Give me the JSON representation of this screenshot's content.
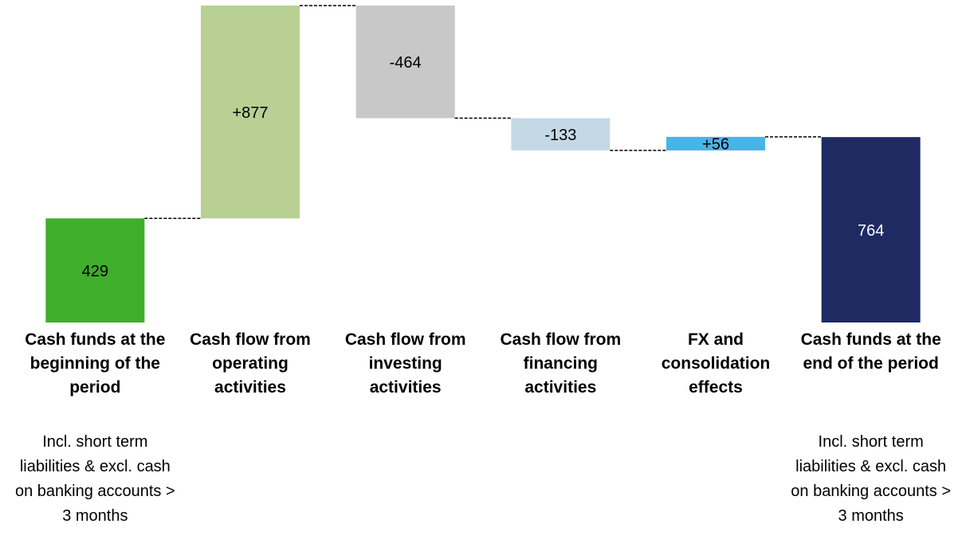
{
  "chart_data": {
    "type": "waterfall",
    "categories": [
      "Cash funds at the beginning of the period",
      "Cash flow from operating activities",
      "Cash flow from investing activities",
      "Cash flow from financing activities",
      "FX and consolidation effects",
      "Cash funds at the end of the period"
    ],
    "values": [
      429,
      877,
      -464,
      -133,
      56,
      764
    ],
    "value_labels": [
      "429",
      "+877",
      "-464",
      "-133",
      "+56",
      "764"
    ],
    "measure": [
      "absolute",
      "relative",
      "relative",
      "relative",
      "relative",
      "absolute"
    ],
    "colors": [
      "#3fae2a",
      "#b8d093",
      "#c8c8c8",
      "#c5d8e6",
      "#4ab4e6",
      "#1f2a63"
    ],
    "annotations": [
      "Incl. short term liabilities & excl. cash on banking accounts > 3 months",
      "Incl. short term liabilities & excl. cash on banking accounts > 3 months"
    ]
  }
}
